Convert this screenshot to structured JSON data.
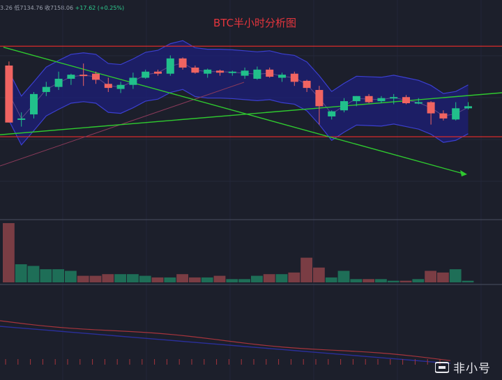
{
  "ohlc_readout": {
    "prefix": "3.26",
    "low_label": "低",
    "low": "7134.76",
    "close_label": "收",
    "close": "7158.06",
    "change": "+17.62 (+0.25%)"
  },
  "title": "BTC半小时分析图",
  "watermark": "非小号",
  "colors": {
    "bg": "#1c1f2b",
    "up": "#21c08b",
    "down": "#f06461",
    "up_vol": "#1e6e57",
    "down_vol": "#7a3d44",
    "band_fill": "#1c1f7a",
    "band_line": "#3b3fd0",
    "resistance": "#d92b2b",
    "trendline": "#2fc92f"
  },
  "chart_data": {
    "type": "candlestick",
    "title": "BTC半小时分析图",
    "ylim": [
      7070,
      7255
    ],
    "candles": [
      {
        "o": 7218,
        "h": 7222,
        "l": 7162,
        "c": 7162
      },
      {
        "o": 7166,
        "h": 7172,
        "l": 7158,
        "c": 7166
      },
      {
        "o": 7170,
        "h": 7192,
        "l": 7166,
        "c": 7190
      },
      {
        "o": 7192,
        "h": 7202,
        "l": 7188,
        "c": 7197
      },
      {
        "o": 7197,
        "h": 7212,
        "l": 7194,
        "c": 7205
      },
      {
        "o": 7205,
        "h": 7210,
        "l": 7199,
        "c": 7209
      },
      {
        "o": 7209,
        "h": 7220,
        "l": 7198,
        "c": 7208
      },
      {
        "o": 7210,
        "h": 7212,
        "l": 7200,
        "c": 7204
      },
      {
        "o": 7200,
        "h": 7206,
        "l": 7192,
        "c": 7196
      },
      {
        "o": 7195,
        "h": 7202,
        "l": 7191,
        "c": 7199
      },
      {
        "o": 7199,
        "h": 7211,
        "l": 7195,
        "c": 7206
      },
      {
        "o": 7206,
        "h": 7214,
        "l": 7205,
        "c": 7212
      },
      {
        "o": 7212,
        "h": 7214,
        "l": 7208,
        "c": 7210
      },
      {
        "o": 7210,
        "h": 7228,
        "l": 7208,
        "c": 7225
      },
      {
        "o": 7225,
        "h": 7226,
        "l": 7214,
        "c": 7216
      },
      {
        "o": 7216,
        "h": 7218,
        "l": 7210,
        "c": 7211
      },
      {
        "o": 7210,
        "h": 7215,
        "l": 7206,
        "c": 7214
      },
      {
        "o": 7213,
        "h": 7214,
        "l": 7208,
        "c": 7211
      },
      {
        "o": 7211,
        "h": 7213,
        "l": 7208,
        "c": 7212
      },
      {
        "o": 7208,
        "h": 7216,
        "l": 7205,
        "c": 7213
      },
      {
        "o": 7205,
        "h": 7217,
        "l": 7204,
        "c": 7214
      },
      {
        "o": 7214,
        "h": 7216,
        "l": 7206,
        "c": 7207
      },
      {
        "o": 7206,
        "h": 7211,
        "l": 7202,
        "c": 7209
      },
      {
        "o": 7210,
        "h": 7212,
        "l": 7198,
        "c": 7202
      },
      {
        "o": 7203,
        "h": 7204,
        "l": 7192,
        "c": 7196
      },
      {
        "o": 7194,
        "h": 7198,
        "l": 7160,
        "c": 7178
      },
      {
        "o": 7168,
        "h": 7174,
        "l": 7165,
        "c": 7173
      },
      {
        "o": 7174,
        "h": 7186,
        "l": 7172,
        "c": 7183
      },
      {
        "o": 7183,
        "h": 7188,
        "l": 7178,
        "c": 7188
      },
      {
        "o": 7188,
        "h": 7190,
        "l": 7181,
        "c": 7182
      },
      {
        "o": 7183,
        "h": 7188,
        "l": 7181,
        "c": 7186
      },
      {
        "o": 7186,
        "h": 7190,
        "l": 7180,
        "c": 7187
      },
      {
        "o": 7187,
        "h": 7189,
        "l": 7180,
        "c": 7181
      },
      {
        "o": 7181,
        "h": 7186,
        "l": 7180,
        "c": 7182
      },
      {
        "o": 7182,
        "h": 7183,
        "l": 7160,
        "c": 7171
      },
      {
        "o": 7171,
        "h": 7174,
        "l": 7164,
        "c": 7166
      },
      {
        "o": 7165,
        "h": 7182,
        "l": 7164,
        "c": 7176
      },
      {
        "o": 7176,
        "h": 7182,
        "l": 7175,
        "c": 7178
      }
    ],
    "volume": [
      3.6,
      1.1,
      1.0,
      0.8,
      0.8,
      0.7,
      0.4,
      0.4,
      0.5,
      0.5,
      0.5,
      0.4,
      0.3,
      0.3,
      0.5,
      0.3,
      0.3,
      0.4,
      0.2,
      0.2,
      0.4,
      0.5,
      0.5,
      0.6,
      1.5,
      0.9,
      0.3,
      0.7,
      0.2,
      0.2,
      0.2,
      0.1,
      0.1,
      0.2,
      0.7,
      0.6,
      0.8,
      0.1
    ],
    "volume_max": 3.6,
    "resistance_levels": [
      7237,
      7148
    ],
    "trendlines": [
      {
        "from": [
          0,
          7236
        ],
        "to": [
          38,
          7100
        ]
      },
      {
        "from": [
          0,
          7150
        ],
        "to": [
          40,
          7180
        ]
      }
    ]
  }
}
